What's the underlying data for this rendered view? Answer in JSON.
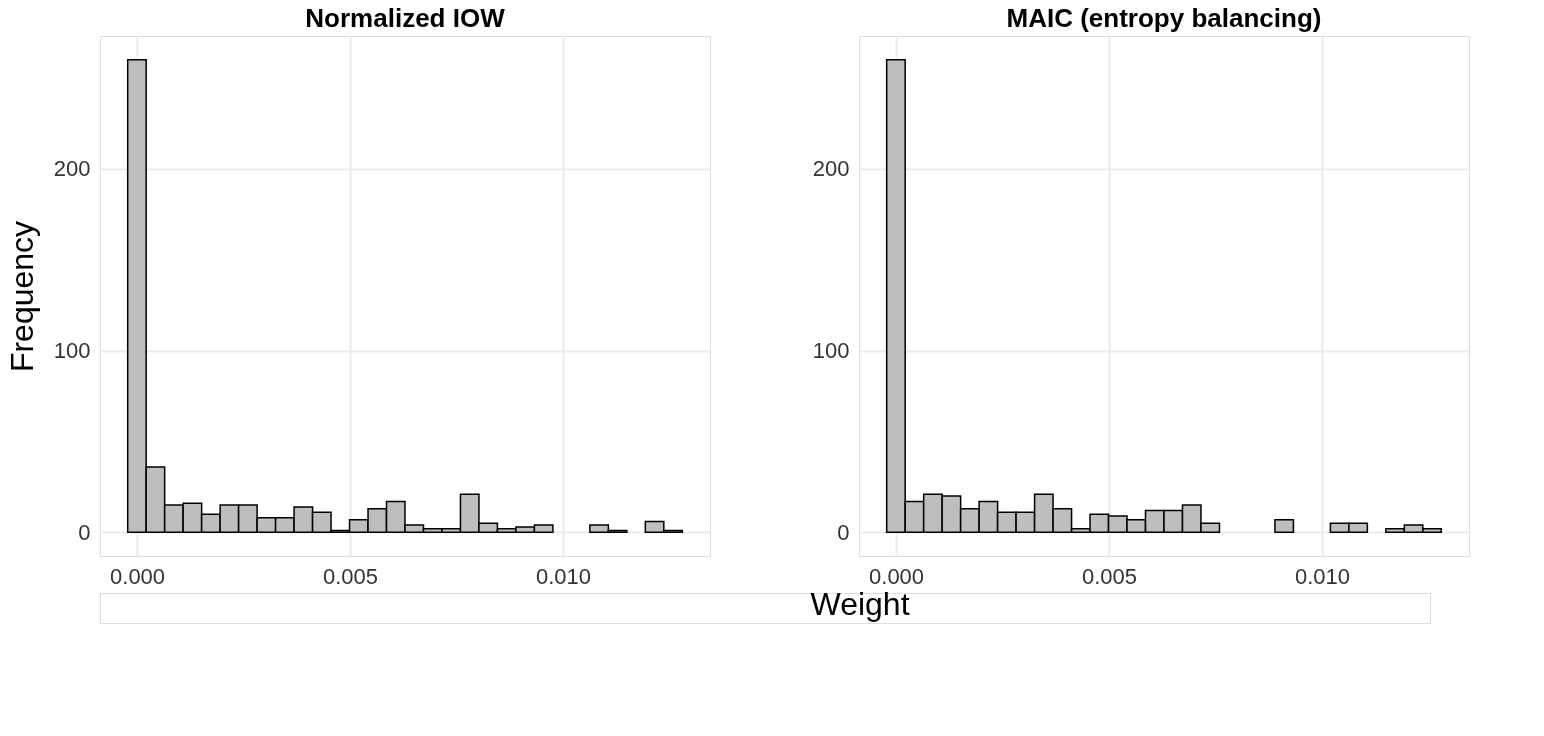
{
  "chart_data": [
    {
      "type": "histogram",
      "title": "Normalized IOW",
      "xlabel": "Weight",
      "ylabel": "Frequency",
      "color": "#bebebe",
      "bins": [
        -0.00022,
        0.000214,
        0.000648,
        0.001082,
        0.001516,
        0.00195,
        0.002384,
        0.002818,
        0.003252,
        0.003686,
        0.00412,
        0.004554,
        0.004988,
        0.005422,
        0.005856,
        0.00629,
        0.006724,
        0.007158,
        0.007592,
        0.008026,
        0.00846,
        0.008894,
        0.009328,
        0.009762,
        0.010196,
        0.01063,
        0.011064,
        0.011498,
        0.011932,
        0.012366,
        0.0128
      ],
      "values": [
        260,
        36,
        15,
        16,
        10,
        15,
        15,
        8,
        8,
        14,
        11,
        1,
        7,
        13,
        17,
        4,
        2,
        2,
        21,
        5,
        2,
        3,
        4,
        0,
        0,
        4,
        1,
        0,
        6,
        1
      ],
      "xlim": [
        -0.00087,
        0.01345
      ],
      "xticks": [
        {
          "value": 0,
          "label": "0.000"
        },
        {
          "value": 0.005,
          "label": "0.005"
        },
        {
          "value": 0.01,
          "label": "0.010"
        }
      ],
      "ylim": [
        -13,
        273
      ],
      "yticks": [
        0,
        100,
        200
      ],
      "grid": true
    },
    {
      "type": "histogram",
      "title": "MAIC (entropy balancing)",
      "color": "#bebebe",
      "bins": [
        -0.00022,
        0.000214,
        0.000648,
        0.001082,
        0.001516,
        0.00195,
        0.002384,
        0.002818,
        0.003252,
        0.003686,
        0.00412,
        0.004554,
        0.004988,
        0.005422,
        0.005856,
        0.00629,
        0.006724,
        0.007158,
        0.007592,
        0.008026,
        0.00846,
        0.008894,
        0.009328,
        0.009762,
        0.010196,
        0.01063,
        0.011064,
        0.011498,
        0.011932,
        0.012366,
        0.0128
      ],
      "values": [
        260,
        17,
        21,
        20,
        13,
        17,
        11,
        11,
        21,
        13,
        2,
        10,
        9,
        7,
        12,
        12,
        15,
        5,
        0,
        0,
        0,
        7,
        0,
        0,
        5,
        5,
        0,
        2,
        4,
        2
      ],
      "xlim": [
        -0.00087,
        0.01345
      ],
      "xticks": [
        {
          "value": 0,
          "label": "0.000"
        },
        {
          "value": 0.005,
          "label": "0.005"
        },
        {
          "value": 0.01,
          "label": "0.010"
        }
      ],
      "ylim": [
        -13,
        273
      ],
      "yticks": [
        0,
        100,
        200
      ],
      "grid": true
    }
  ]
}
